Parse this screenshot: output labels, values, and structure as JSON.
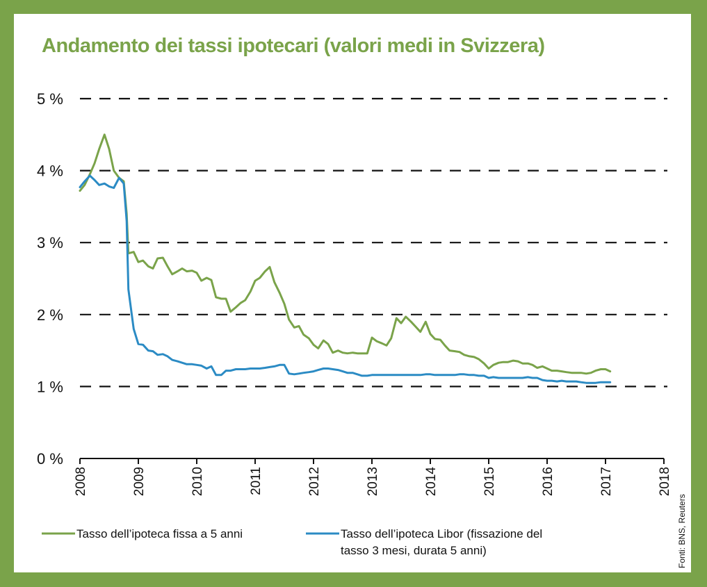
{
  "title": "Andamento dei tassi ipotecari (valori medi in Svizzera)",
  "source": "Fonti: BNS, Reuters",
  "colors": {
    "background_frame": "#7aa34a",
    "title": "#7aa34a",
    "series_fixed": "#7aa34a",
    "series_libor": "#2b8bc4",
    "grid": "#111111"
  },
  "legend": [
    {
      "label_lines": [
        "Tasso dell’ipoteca fissa a 5 anni"
      ],
      "color": "#7aa34a"
    },
    {
      "label_lines": [
        "Tasso dell’ipoteca Libor (fissazione del",
        "tasso 3 mesi, durata 5 anni)"
      ],
      "color": "#2b8bc4"
    }
  ],
  "chart_data": {
    "type": "line",
    "title": "Andamento dei tassi ipotecari (valori medi in Svizzera)",
    "xlabel": "",
    "ylabel": "",
    "xlim": [
      2008,
      2018
    ],
    "ylim": [
      0,
      5
    ],
    "x_ticks": [
      "2008",
      "2009",
      "2010",
      "2011",
      "2012",
      "2013",
      "2014",
      "2015",
      "2016",
      "2017",
      "2018"
    ],
    "y_ticks": [
      "0 %",
      "1 %",
      "2 %",
      "3 %",
      "4 %",
      "5 %"
    ],
    "grid": "horizontal dashed",
    "legend_position": "bottom",
    "series": [
      {
        "name": "Tasso dell’ipoteca fissa a 5 anni",
        "color": "#7aa34a",
        "points": [
          [
            2008.0,
            3.72
          ],
          [
            2008.08,
            3.8
          ],
          [
            2008.17,
            3.95
          ],
          [
            2008.25,
            4.1
          ],
          [
            2008.33,
            4.3
          ],
          [
            2008.42,
            4.5
          ],
          [
            2008.5,
            4.3
          ],
          [
            2008.58,
            4.0
          ],
          [
            2008.67,
            3.9
          ],
          [
            2008.75,
            3.85
          ],
          [
            2008.8,
            3.4
          ],
          [
            2008.83,
            2.85
          ],
          [
            2008.92,
            2.87
          ],
          [
            2009.0,
            2.73
          ],
          [
            2009.08,
            2.75
          ],
          [
            2009.17,
            2.67
          ],
          [
            2009.25,
            2.64
          ],
          [
            2009.33,
            2.78
          ],
          [
            2009.42,
            2.79
          ],
          [
            2009.5,
            2.67
          ],
          [
            2009.58,
            2.56
          ],
          [
            2009.67,
            2.6
          ],
          [
            2009.75,
            2.64
          ],
          [
            2009.83,
            2.6
          ],
          [
            2009.92,
            2.61
          ],
          [
            2010.0,
            2.58
          ],
          [
            2010.08,
            2.47
          ],
          [
            2010.17,
            2.51
          ],
          [
            2010.25,
            2.48
          ],
          [
            2010.33,
            2.24
          ],
          [
            2010.42,
            2.22
          ],
          [
            2010.5,
            2.22
          ],
          [
            2010.58,
            2.04
          ],
          [
            2010.67,
            2.1
          ],
          [
            2010.75,
            2.16
          ],
          [
            2010.83,
            2.2
          ],
          [
            2010.92,
            2.32
          ],
          [
            2011.0,
            2.47
          ],
          [
            2011.08,
            2.51
          ],
          [
            2011.17,
            2.6
          ],
          [
            2011.25,
            2.66
          ],
          [
            2011.33,
            2.45
          ],
          [
            2011.42,
            2.3
          ],
          [
            2011.5,
            2.15
          ],
          [
            2011.58,
            1.93
          ],
          [
            2011.67,
            1.82
          ],
          [
            2011.75,
            1.84
          ],
          [
            2011.83,
            1.72
          ],
          [
            2011.92,
            1.67
          ],
          [
            2012.0,
            1.58
          ],
          [
            2012.08,
            1.53
          ],
          [
            2012.17,
            1.64
          ],
          [
            2012.25,
            1.59
          ],
          [
            2012.33,
            1.47
          ],
          [
            2012.42,
            1.5
          ],
          [
            2012.5,
            1.47
          ],
          [
            2012.58,
            1.46
          ],
          [
            2012.67,
            1.47
          ],
          [
            2012.75,
            1.46
          ],
          [
            2012.83,
            1.46
          ],
          [
            2012.92,
            1.46
          ],
          [
            2013.0,
            1.68
          ],
          [
            2013.08,
            1.63
          ],
          [
            2013.17,
            1.6
          ],
          [
            2013.25,
            1.57
          ],
          [
            2013.33,
            1.67
          ],
          [
            2013.42,
            1.95
          ],
          [
            2013.5,
            1.88
          ],
          [
            2013.58,
            1.97
          ],
          [
            2013.67,
            1.9
          ],
          [
            2013.75,
            1.83
          ],
          [
            2013.83,
            1.76
          ],
          [
            2013.92,
            1.9
          ],
          [
            2014.0,
            1.73
          ],
          [
            2014.08,
            1.66
          ],
          [
            2014.17,
            1.65
          ],
          [
            2014.25,
            1.57
          ],
          [
            2014.33,
            1.5
          ],
          [
            2014.42,
            1.49
          ],
          [
            2014.5,
            1.48
          ],
          [
            2014.58,
            1.44
          ],
          [
            2014.67,
            1.42
          ],
          [
            2014.75,
            1.41
          ],
          [
            2014.83,
            1.38
          ],
          [
            2014.92,
            1.32
          ],
          [
            2015.0,
            1.25
          ],
          [
            2015.08,
            1.3
          ],
          [
            2015.17,
            1.33
          ],
          [
            2015.25,
            1.34
          ],
          [
            2015.33,
            1.34
          ],
          [
            2015.42,
            1.36
          ],
          [
            2015.5,
            1.35
          ],
          [
            2015.58,
            1.32
          ],
          [
            2015.67,
            1.32
          ],
          [
            2015.75,
            1.3
          ],
          [
            2015.83,
            1.26
          ],
          [
            2015.92,
            1.28
          ],
          [
            2016.0,
            1.25
          ],
          [
            2016.08,
            1.22
          ],
          [
            2016.17,
            1.22
          ],
          [
            2016.25,
            1.21
          ],
          [
            2016.33,
            1.2
          ],
          [
            2016.42,
            1.19
          ],
          [
            2016.5,
            1.19
          ],
          [
            2016.58,
            1.19
          ],
          [
            2016.67,
            1.18
          ],
          [
            2016.75,
            1.19
          ],
          [
            2016.83,
            1.22
          ],
          [
            2016.92,
            1.24
          ],
          [
            2017.0,
            1.24
          ],
          [
            2017.08,
            1.21
          ]
        ]
      },
      {
        "name": "Tasso dell’ipoteca Libor (fissazione del tasso 3 mesi, durata 5 anni)",
        "color": "#2b8bc4",
        "points": [
          [
            2008.0,
            3.77
          ],
          [
            2008.08,
            3.85
          ],
          [
            2008.17,
            3.93
          ],
          [
            2008.25,
            3.87
          ],
          [
            2008.33,
            3.8
          ],
          [
            2008.42,
            3.82
          ],
          [
            2008.5,
            3.78
          ],
          [
            2008.58,
            3.76
          ],
          [
            2008.67,
            3.9
          ],
          [
            2008.75,
            3.82
          ],
          [
            2008.8,
            3.3
          ],
          [
            2008.83,
            2.35
          ],
          [
            2008.92,
            1.8
          ],
          [
            2009.0,
            1.59
          ],
          [
            2009.08,
            1.58
          ],
          [
            2009.17,
            1.5
          ],
          [
            2009.25,
            1.49
          ],
          [
            2009.33,
            1.44
          ],
          [
            2009.42,
            1.45
          ],
          [
            2009.5,
            1.42
          ],
          [
            2009.58,
            1.37
          ],
          [
            2009.67,
            1.35
          ],
          [
            2009.75,
            1.33
          ],
          [
            2009.83,
            1.31
          ],
          [
            2009.92,
            1.31
          ],
          [
            2010.0,
            1.3
          ],
          [
            2010.08,
            1.29
          ],
          [
            2010.17,
            1.25
          ],
          [
            2010.25,
            1.28
          ],
          [
            2010.33,
            1.16
          ],
          [
            2010.42,
            1.16
          ],
          [
            2010.5,
            1.22
          ],
          [
            2010.58,
            1.22
          ],
          [
            2010.67,
            1.24
          ],
          [
            2010.75,
            1.24
          ],
          [
            2010.83,
            1.24
          ],
          [
            2010.92,
            1.25
          ],
          [
            2011.0,
            1.25
          ],
          [
            2011.08,
            1.25
          ],
          [
            2011.17,
            1.26
          ],
          [
            2011.25,
            1.27
          ],
          [
            2011.33,
            1.28
          ],
          [
            2011.42,
            1.3
          ],
          [
            2011.5,
            1.3
          ],
          [
            2011.58,
            1.18
          ],
          [
            2011.67,
            1.17
          ],
          [
            2011.75,
            1.18
          ],
          [
            2011.83,
            1.19
          ],
          [
            2011.92,
            1.2
          ],
          [
            2012.0,
            1.21
          ],
          [
            2012.08,
            1.23
          ],
          [
            2012.17,
            1.25
          ],
          [
            2012.25,
            1.25
          ],
          [
            2012.33,
            1.24
          ],
          [
            2012.42,
            1.23
          ],
          [
            2012.5,
            1.21
          ],
          [
            2012.58,
            1.19
          ],
          [
            2012.67,
            1.19
          ],
          [
            2012.75,
            1.17
          ],
          [
            2012.83,
            1.15
          ],
          [
            2012.92,
            1.15
          ],
          [
            2013.0,
            1.16
          ],
          [
            2013.08,
            1.16
          ],
          [
            2013.17,
            1.16
          ],
          [
            2013.25,
            1.16
          ],
          [
            2013.33,
            1.16
          ],
          [
            2013.42,
            1.16
          ],
          [
            2013.5,
            1.16
          ],
          [
            2013.58,
            1.16
          ],
          [
            2013.67,
            1.16
          ],
          [
            2013.75,
            1.16
          ],
          [
            2013.83,
            1.16
          ],
          [
            2013.92,
            1.17
          ],
          [
            2014.0,
            1.17
          ],
          [
            2014.08,
            1.16
          ],
          [
            2014.17,
            1.16
          ],
          [
            2014.25,
            1.16
          ],
          [
            2014.33,
            1.16
          ],
          [
            2014.42,
            1.16
          ],
          [
            2014.5,
            1.17
          ],
          [
            2014.58,
            1.17
          ],
          [
            2014.67,
            1.16
          ],
          [
            2014.75,
            1.16
          ],
          [
            2014.83,
            1.15
          ],
          [
            2014.92,
            1.15
          ],
          [
            2015.0,
            1.12
          ],
          [
            2015.08,
            1.13
          ],
          [
            2015.17,
            1.12
          ],
          [
            2015.25,
            1.12
          ],
          [
            2015.33,
            1.12
          ],
          [
            2015.42,
            1.12
          ],
          [
            2015.5,
            1.12
          ],
          [
            2015.58,
            1.12
          ],
          [
            2015.67,
            1.13
          ],
          [
            2015.75,
            1.12
          ],
          [
            2015.83,
            1.12
          ],
          [
            2015.92,
            1.09
          ],
          [
            2016.0,
            1.08
          ],
          [
            2016.08,
            1.08
          ],
          [
            2016.17,
            1.07
          ],
          [
            2016.25,
            1.08
          ],
          [
            2016.33,
            1.07
          ],
          [
            2016.42,
            1.07
          ],
          [
            2016.5,
            1.07
          ],
          [
            2016.58,
            1.06
          ],
          [
            2016.67,
            1.05
          ],
          [
            2016.75,
            1.05
          ],
          [
            2016.83,
            1.05
          ],
          [
            2016.92,
            1.06
          ],
          [
            2017.0,
            1.06
          ],
          [
            2017.08,
            1.06
          ]
        ]
      }
    ]
  }
}
